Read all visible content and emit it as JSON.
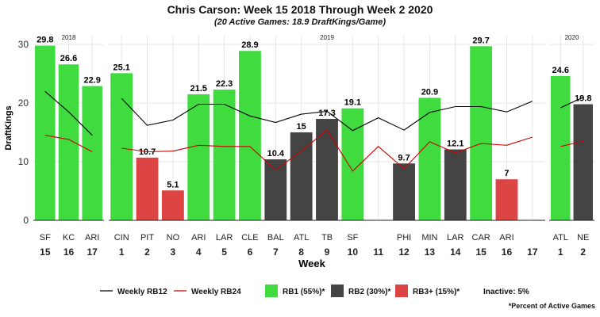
{
  "header": {
    "title": "Chris Carson: Week 15 2018 Through Week 2 2020",
    "subtitle": "(20 Active Games: 18.9 DraftKings/Game)"
  },
  "footnote": "*Percent of Active Games",
  "colors": {
    "rb1": "#3fdb3f",
    "rb2": "#444444",
    "rb3": "#dd4444",
    "rb12_line": "#000000",
    "rb24_line": "#cc0000",
    "grid": "#e6e6e6"
  },
  "chart_data": {
    "type": "bar",
    "ylabel": "DraftKings",
    "xlabel": "Week",
    "ylim": [
      0,
      31.5
    ],
    "yticks": [
      0,
      10,
      20,
      30
    ],
    "panels": [
      {
        "label": "2018",
        "weeks": [
          15,
          16,
          17
        ],
        "opponents": [
          "SF",
          "KC",
          "ARI"
        ],
        "points": [
          29.8,
          26.6,
          22.9
        ],
        "tier": [
          "RB1",
          "RB1",
          "RB1"
        ],
        "rb12": [
          22.0,
          18.5,
          14.5
        ],
        "rb24": [
          14.5,
          13.8,
          11.7
        ]
      },
      {
        "label": "2019",
        "weeks": [
          1,
          2,
          3,
          4,
          5,
          6,
          7,
          8,
          9,
          10,
          11,
          12,
          13,
          14,
          15,
          16,
          17
        ],
        "opponents": [
          "CIN",
          "PIT",
          "NO",
          "ARI",
          "LAR",
          "CLE",
          "BAL",
          "ATL",
          "TB",
          "SF",
          "",
          "PHI",
          "MIN",
          "LAR",
          "CAR",
          "ARI",
          ""
        ],
        "points": [
          25.1,
          10.7,
          5.1,
          21.5,
          22.3,
          28.9,
          10.4,
          15,
          17.3,
          19.1,
          null,
          9.7,
          20.9,
          12.1,
          29.7,
          7,
          null
        ],
        "tier": [
          "RB1",
          "RB3",
          "RB3",
          "RB1",
          "RB1",
          "RB1",
          "RB2",
          "RB2",
          "RB2",
          "RB1",
          "",
          "RB2",
          "RB1",
          "RB2",
          "RB1",
          "RB3",
          ""
        ],
        "rb12": [
          20.8,
          16.2,
          17.1,
          19.8,
          19.8,
          17.8,
          16.7,
          18.1,
          18.6,
          15.3,
          17.5,
          15.4,
          18.4,
          19.4,
          19.4,
          18.5,
          20.3
        ],
        "rb24": [
          12.3,
          11.7,
          11.8,
          12.8,
          12.6,
          12.6,
          8.6,
          11.8,
          15.4,
          8.4,
          12.6,
          8.8,
          13.4,
          11.5,
          13.1,
          12.8,
          14.2
        ]
      },
      {
        "label": "2020",
        "weeks": [
          1,
          2
        ],
        "opponents": [
          "ATL",
          "NE"
        ],
        "points": [
          24.6,
          19.8
        ],
        "tier": [
          "RB1",
          "RB2"
        ],
        "rb12": [
          19.2,
          21.0
        ],
        "rb24": [
          12.6,
          13.5
        ]
      }
    ],
    "legend": {
      "rb12": "Weekly RB12",
      "rb24": "Weekly RB24",
      "rb1": "RB1 (55%)*",
      "rb2": "RB2 (30%)*",
      "rb3": "RB3+ (15%)*",
      "inactive": "Inactive: 5%"
    }
  }
}
